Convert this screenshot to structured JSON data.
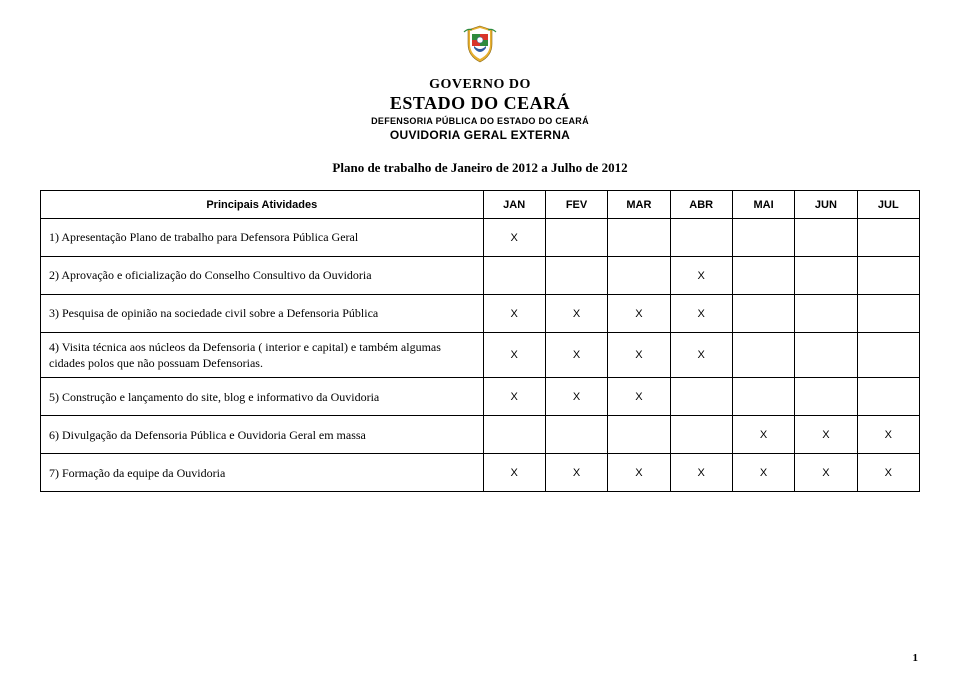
{
  "header": {
    "line1": "GOVERNO DO",
    "line2": "ESTADO DO CEARÁ",
    "line3": "DEFENSORIA PÚBLICA DO ESTADO DO CEARÁ",
    "ouvidoria": "OUVIDORIA GERAL EXTERNA"
  },
  "plan_title": "Plano de trabalho de Janeiro  de 2012 a Julho de 2012",
  "table": {
    "header_label": "Principais Atividades",
    "months": [
      "JAN",
      "FEV",
      "MAR",
      "ABR",
      "MAI",
      "JUN",
      "JUL"
    ],
    "mark": "X",
    "rows": [
      {
        "activity": "1) Apresentação  Plano de trabalho para  Defensora Pública Geral",
        "marks": [
          true,
          false,
          false,
          false,
          false,
          false,
          false
        ]
      },
      {
        "activity": "2) Aprovação e oficialização do Conselho Consultivo da Ouvidoria",
        "marks": [
          false,
          false,
          false,
          true,
          false,
          false,
          false
        ]
      },
      {
        "activity": "3) Pesquisa de opinião na sociedade civil sobre a Defensoria Pública",
        "marks": [
          true,
          true,
          true,
          true,
          false,
          false,
          false
        ]
      },
      {
        "activity": "4) Visita técnica aos núcleos da Defensoria ( interior e capital) e também algumas cidades polos que não possuam Defensorias.",
        "marks": [
          true,
          true,
          true,
          true,
          false,
          false,
          false
        ]
      },
      {
        "activity": "5) Construção e lançamento do site, blog e informativo da Ouvidoria",
        "marks": [
          true,
          true,
          true,
          false,
          false,
          false,
          false
        ]
      },
      {
        "activity": "6)  Divulgação da Defensoria Pública e Ouvidoria Geral em massa",
        "marks": [
          false,
          false,
          false,
          false,
          true,
          true,
          true
        ]
      },
      {
        "activity": "7) Formação da equipe da Ouvidoria",
        "marks": [
          true,
          true,
          true,
          true,
          true,
          true,
          true
        ]
      }
    ]
  },
  "page_number": "1",
  "colors": {
    "border": "#000000",
    "text": "#000000",
    "emblem_shield": "#e8b02e",
    "emblem_red": "#d9342b",
    "emblem_green": "#2e8b3d",
    "emblem_blue": "#2e5a9e",
    "emblem_white": "#ffffff"
  }
}
